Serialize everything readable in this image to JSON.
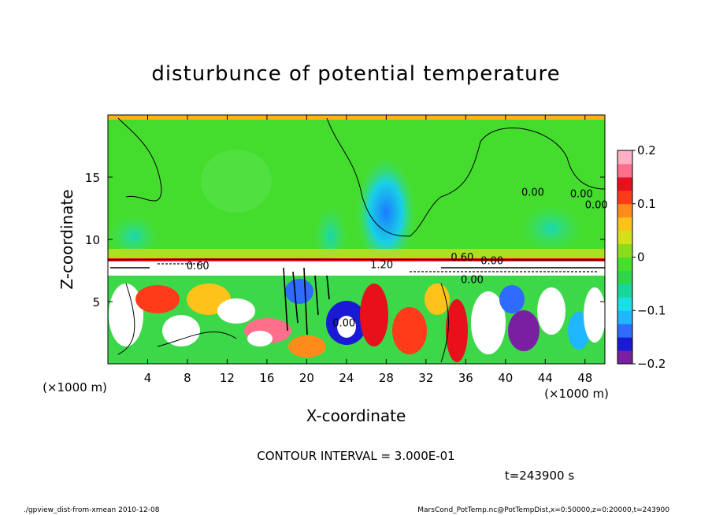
{
  "chart_data": {
    "type": "heatmap",
    "title": "disturbunce of potential temperature",
    "xlabel": "X-coordinate",
    "ylabel": "Z-coordinate",
    "x_unit": "(×1000 m)",
    "y_unit": "(×1000 m)",
    "xlim": [
      0,
      50
    ],
    "ylim": [
      0,
      20
    ],
    "x_ticks": [
      "4",
      "8",
      "12",
      "16",
      "20",
      "24",
      "28",
      "32",
      "36",
      "40",
      "44",
      "48"
    ],
    "y_ticks": [
      "5",
      "10",
      "15"
    ],
    "colorbar": {
      "range": [
        -0.2,
        0.2
      ],
      "tick_labels": [
        "0.2",
        "0.1",
        "0",
        "−0.1",
        "−0.2"
      ],
      "colors": [
        "#ffffff",
        "#7b1fa2",
        "#1a1ad6",
        "#2f6bff",
        "#1fb7ff",
        "#19e0e6",
        "#17d79a",
        "#2fd64a",
        "#44e02c",
        "#8cdc1c",
        "#d6e01a",
        "#ffc21a",
        "#ff8c1a",
        "#ff3b1a",
        "#e8101a",
        "#ff6e8a",
        "#ffb0c4"
      ]
    },
    "contour_labels": [
      "0.00",
      "0.00",
      "0.00",
      "0.00",
      "0.00",
      "0.00",
      "0.60",
      "0.60",
      "1.20"
    ],
    "contour_interval_text": "CONTOUR INTERVAL = 3.000E-01",
    "time_text": "t=243900 s",
    "background_levels": {
      "upper": 0.0,
      "lower_mixed": [
        -0.2,
        0.2
      ]
    }
  },
  "footer": {
    "left": "./gpview_dist-from-xmean   2010-12-08",
    "right": "MarsCond_PotTemp.nc@PotTempDist,x=0:50000,z=0:20000,t=243900"
  }
}
